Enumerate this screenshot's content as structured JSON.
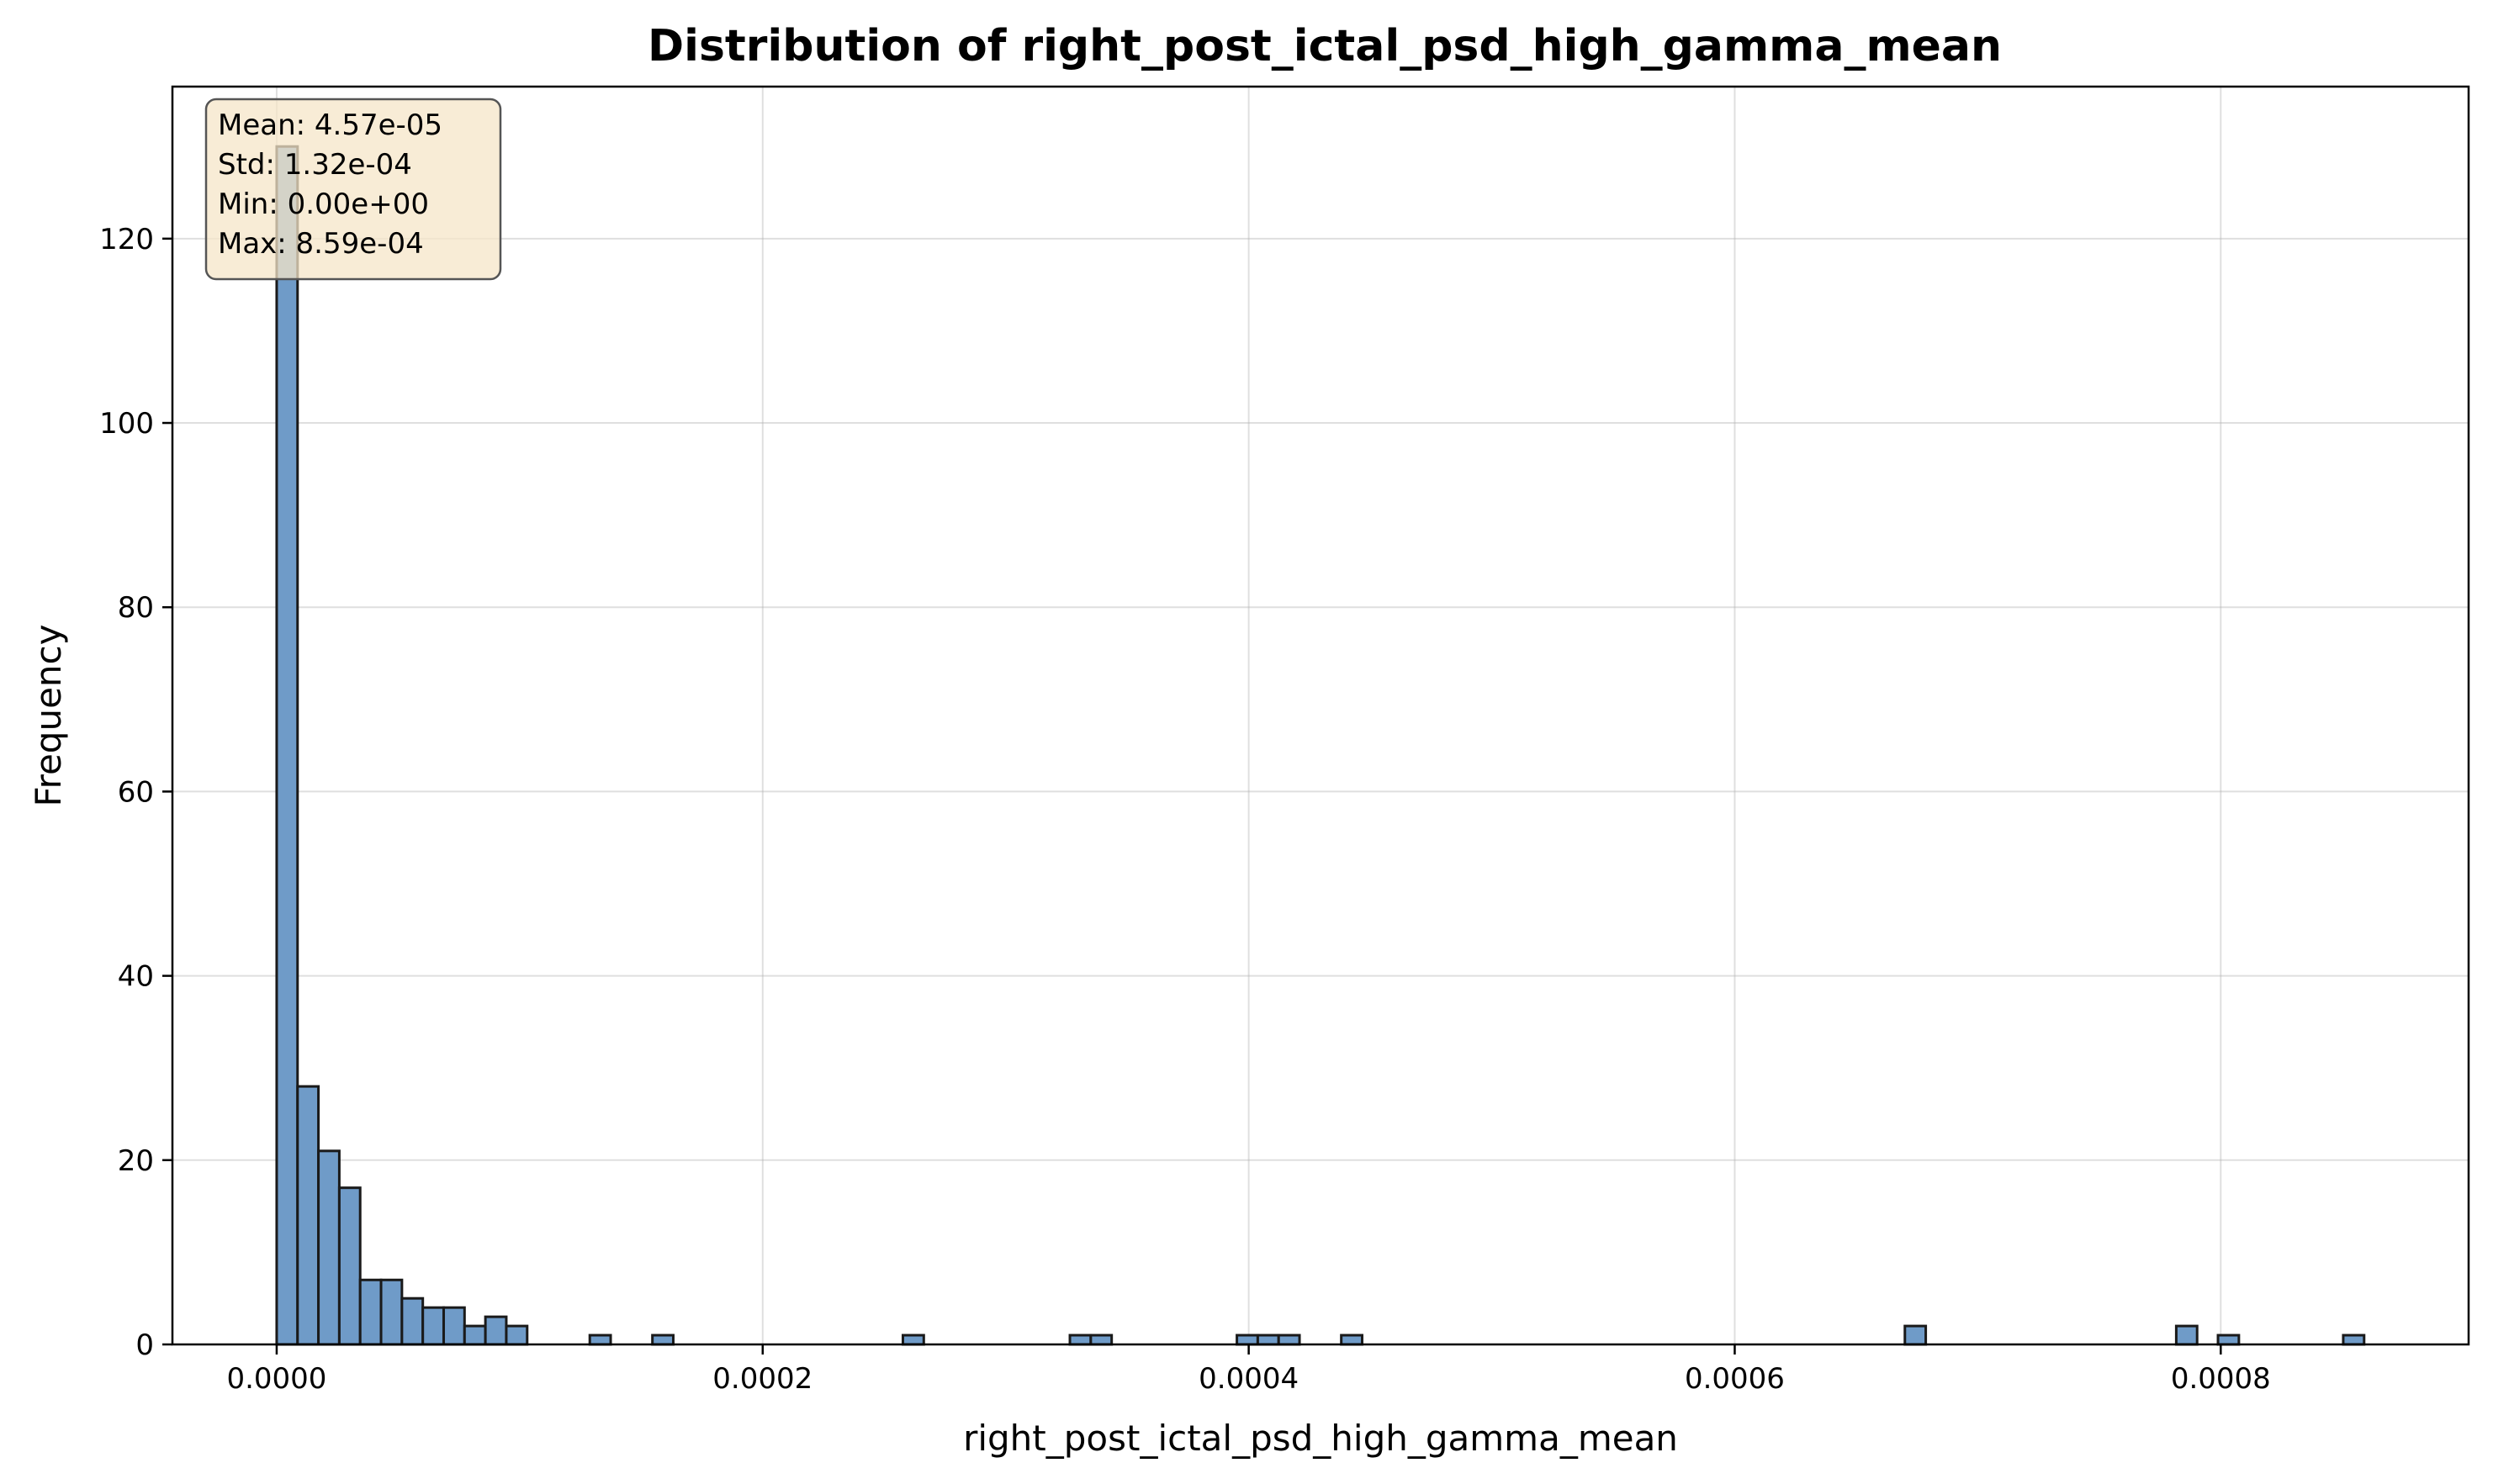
{
  "chart_data": {
    "type": "bar",
    "title": "Distribution of right_post_ictal_psd_high_gamma_mean",
    "xlabel": "right_post_ictal_psd_high_gamma_mean",
    "ylabel": "Frequency",
    "xlim": [
      -4.29e-05,
      0.000902
    ],
    "ylim": [
      0,
      136.5
    ],
    "x_ticks": [
      0.0,
      0.0002,
      0.0004,
      0.0006,
      0.0008
    ],
    "x_tick_labels": [
      "0.0000",
      "0.0002",
      "0.0004",
      "0.0006",
      "0.0008"
    ],
    "y_ticks": [
      0,
      20,
      40,
      60,
      80,
      100,
      120
    ],
    "y_tick_labels": [
      "0",
      "20",
      "40",
      "60",
      "80",
      "100",
      "120"
    ],
    "grid": true,
    "bin_start": 0.0,
    "bin_width": 8.59e-06,
    "bin_count": 100,
    "bins": [
      {
        "index": 0,
        "count": 130
      },
      {
        "index": 1,
        "count": 28
      },
      {
        "index": 2,
        "count": 21
      },
      {
        "index": 3,
        "count": 17
      },
      {
        "index": 4,
        "count": 7
      },
      {
        "index": 5,
        "count": 7
      },
      {
        "index": 6,
        "count": 5
      },
      {
        "index": 7,
        "count": 4
      },
      {
        "index": 8,
        "count": 4
      },
      {
        "index": 9,
        "count": 2
      },
      {
        "index": 10,
        "count": 3
      },
      {
        "index": 11,
        "count": 2
      },
      {
        "index": 15,
        "count": 1
      },
      {
        "index": 18,
        "count": 1
      },
      {
        "index": 30,
        "count": 1
      },
      {
        "index": 38,
        "count": 1
      },
      {
        "index": 39,
        "count": 1
      },
      {
        "index": 46,
        "count": 1
      },
      {
        "index": 47,
        "count": 1
      },
      {
        "index": 48,
        "count": 1
      },
      {
        "index": 51,
        "count": 1
      },
      {
        "index": 78,
        "count": 2
      },
      {
        "index": 91,
        "count": 2
      },
      {
        "index": 93,
        "count": 1
      },
      {
        "index": 99,
        "count": 1
      }
    ],
    "bar_color": "#6f9bc8",
    "bar_edge_color": "#1a1a1a",
    "stats_box": {
      "lines": [
        "Mean: 4.57e-05",
        "Std: 1.32e-04",
        "Min: 0.00e+00",
        "Max: 8.59e-04"
      ],
      "background": "#f5e6c8",
      "placement": "top-left"
    }
  }
}
